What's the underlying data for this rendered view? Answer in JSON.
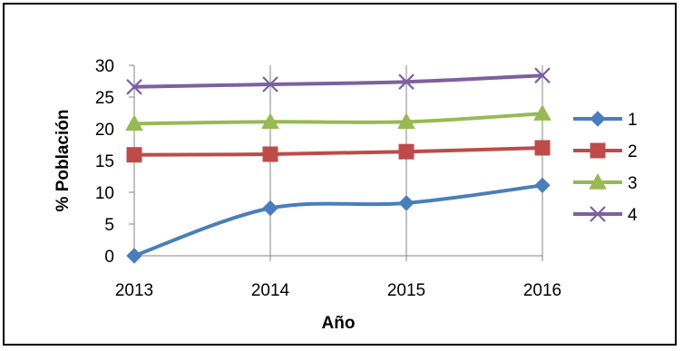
{
  "chart_data": {
    "type": "line",
    "x": [
      "2013",
      "2014",
      "2015",
      "2016"
    ],
    "xlabel": "Año",
    "ylabel": "% Población",
    "ylim": [
      0,
      30
    ],
    "yticks": [
      0,
      5,
      10,
      15,
      20,
      25,
      30
    ],
    "grid": "vertical",
    "legend_position": "right",
    "series": [
      {
        "name": "1",
        "values": [
          0,
          7.5,
          8.3,
          11.1
        ],
        "color": "#4a7ebb",
        "marker": "diamond"
      },
      {
        "name": "2",
        "values": [
          15.9,
          16.0,
          16.4,
          17.0
        ],
        "color": "#be4b48",
        "marker": "square"
      },
      {
        "name": "3",
        "values": [
          20.8,
          21.1,
          21.1,
          22.4
        ],
        "color": "#98b954",
        "marker": "triangle"
      },
      {
        "name": "4",
        "values": [
          26.6,
          27.0,
          27.4,
          28.4
        ],
        "color": "#7d60a0",
        "marker": "x"
      }
    ]
  }
}
